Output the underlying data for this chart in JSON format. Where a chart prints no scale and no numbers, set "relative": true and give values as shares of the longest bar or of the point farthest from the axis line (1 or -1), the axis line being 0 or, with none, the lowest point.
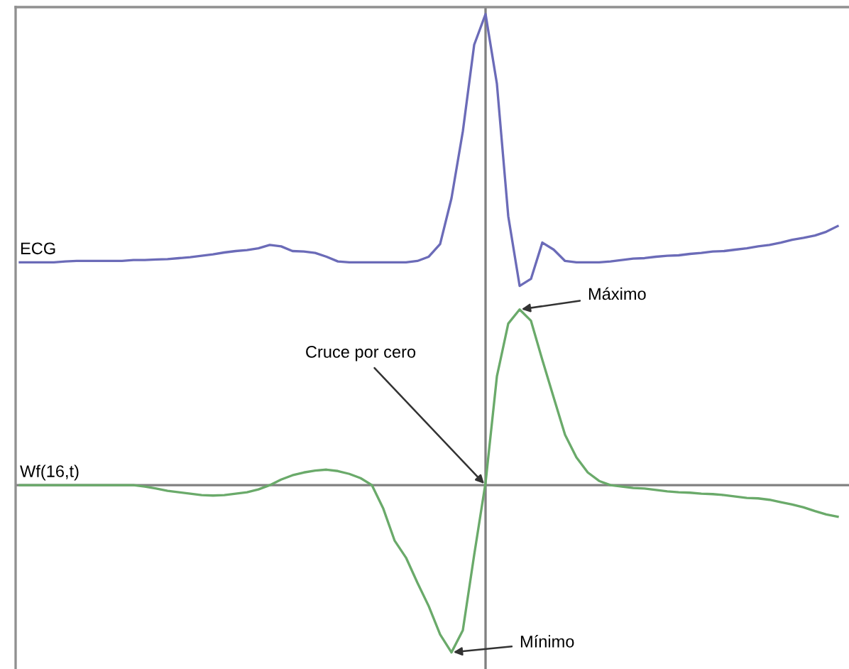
{
  "chart_data": {
    "type": "line",
    "relative": true,
    "legend": false,
    "marker": "none",
    "line_style": "solid",
    "categories": [
      null,
      null,
      null,
      null,
      null,
      null,
      null,
      null,
      null,
      null,
      null,
      null,
      null,
      null,
      null,
      null,
      null,
      null,
      null,
      null,
      null,
      null,
      null,
      null,
      null,
      null,
      null,
      null,
      null,
      null,
      null,
      null,
      null,
      null,
      null,
      null,
      null,
      null,
      null,
      null,
      null,
      null,
      null,
      null,
      null,
      null,
      null,
      null,
      null,
      null,
      null,
      null,
      null,
      null,
      null,
      null,
      null,
      null,
      null,
      null,
      null,
      null,
      null,
      null,
      null,
      null,
      null,
      null,
      null,
      null,
      null,
      null,
      null
    ],
    "series": [
      {
        "name": "ECG",
        "color": "#6b6bb8",
        "values": [
          0.473,
          0.473,
          0.473,
          0.473,
          0.475,
          0.476,
          0.476,
          0.476,
          0.476,
          0.476,
          0.478,
          0.478,
          0.479,
          0.48,
          0.482,
          0.484,
          0.487,
          0.49,
          0.494,
          0.497,
          0.499,
          0.503,
          0.51,
          0.507,
          0.497,
          0.496,
          0.493,
          0.485,
          0.475,
          0.473,
          0.473,
          0.473,
          0.473,
          0.473,
          0.473,
          0.476,
          0.485,
          0.512,
          0.609,
          0.751,
          0.935,
          1.0,
          0.852,
          0.571,
          0.423,
          0.438,
          0.515,
          0.5,
          0.476,
          0.473,
          0.473,
          0.473,
          0.475,
          0.478,
          0.481,
          0.482,
          0.485,
          0.487,
          0.488,
          0.491,
          0.493,
          0.496,
          0.497,
          0.5,
          0.503,
          0.507,
          0.51,
          0.515,
          0.521,
          0.525,
          0.53,
          0.538,
          0.55
        ]
      },
      {
        "name": "Wf(16,t)",
        "color": "#6aaa6a",
        "values": [
          0,
          0,
          0,
          0,
          0,
          0,
          0,
          0,
          0,
          0,
          0,
          -0.003,
          -0.007,
          -0.012,
          -0.015,
          -0.018,
          -0.021,
          -0.022,
          -0.021,
          -0.018,
          -0.015,
          -0.009,
          0,
          0.012,
          0.021,
          0.027,
          0.031,
          0.033,
          0.03,
          0.024,
          0.015,
          0,
          -0.05,
          -0.118,
          -0.154,
          -0.207,
          -0.257,
          -0.317,
          -0.355,
          -0.308,
          -0.148,
          0.005,
          0.231,
          0.343,
          0.373,
          0.349,
          0.266,
          0.186,
          0.107,
          0.059,
          0.027,
          0.009,
          0,
          -0.003,
          -0.006,
          -0.007,
          -0.01,
          -0.013,
          -0.015,
          -0.016,
          -0.018,
          -0.019,
          -0.021,
          -0.024,
          -0.027,
          -0.028,
          -0.031,
          -0.036,
          -0.041,
          -0.047,
          -0.055,
          -0.062,
          -0.067
        ]
      }
    ],
    "ref_lines": [
      {
        "axis": "y",
        "value": 0,
        "color": "#808080"
      }
    ],
    "annotations": [
      "Máximo",
      "Cruce por cero",
      "Mínimo"
    ]
  }
}
